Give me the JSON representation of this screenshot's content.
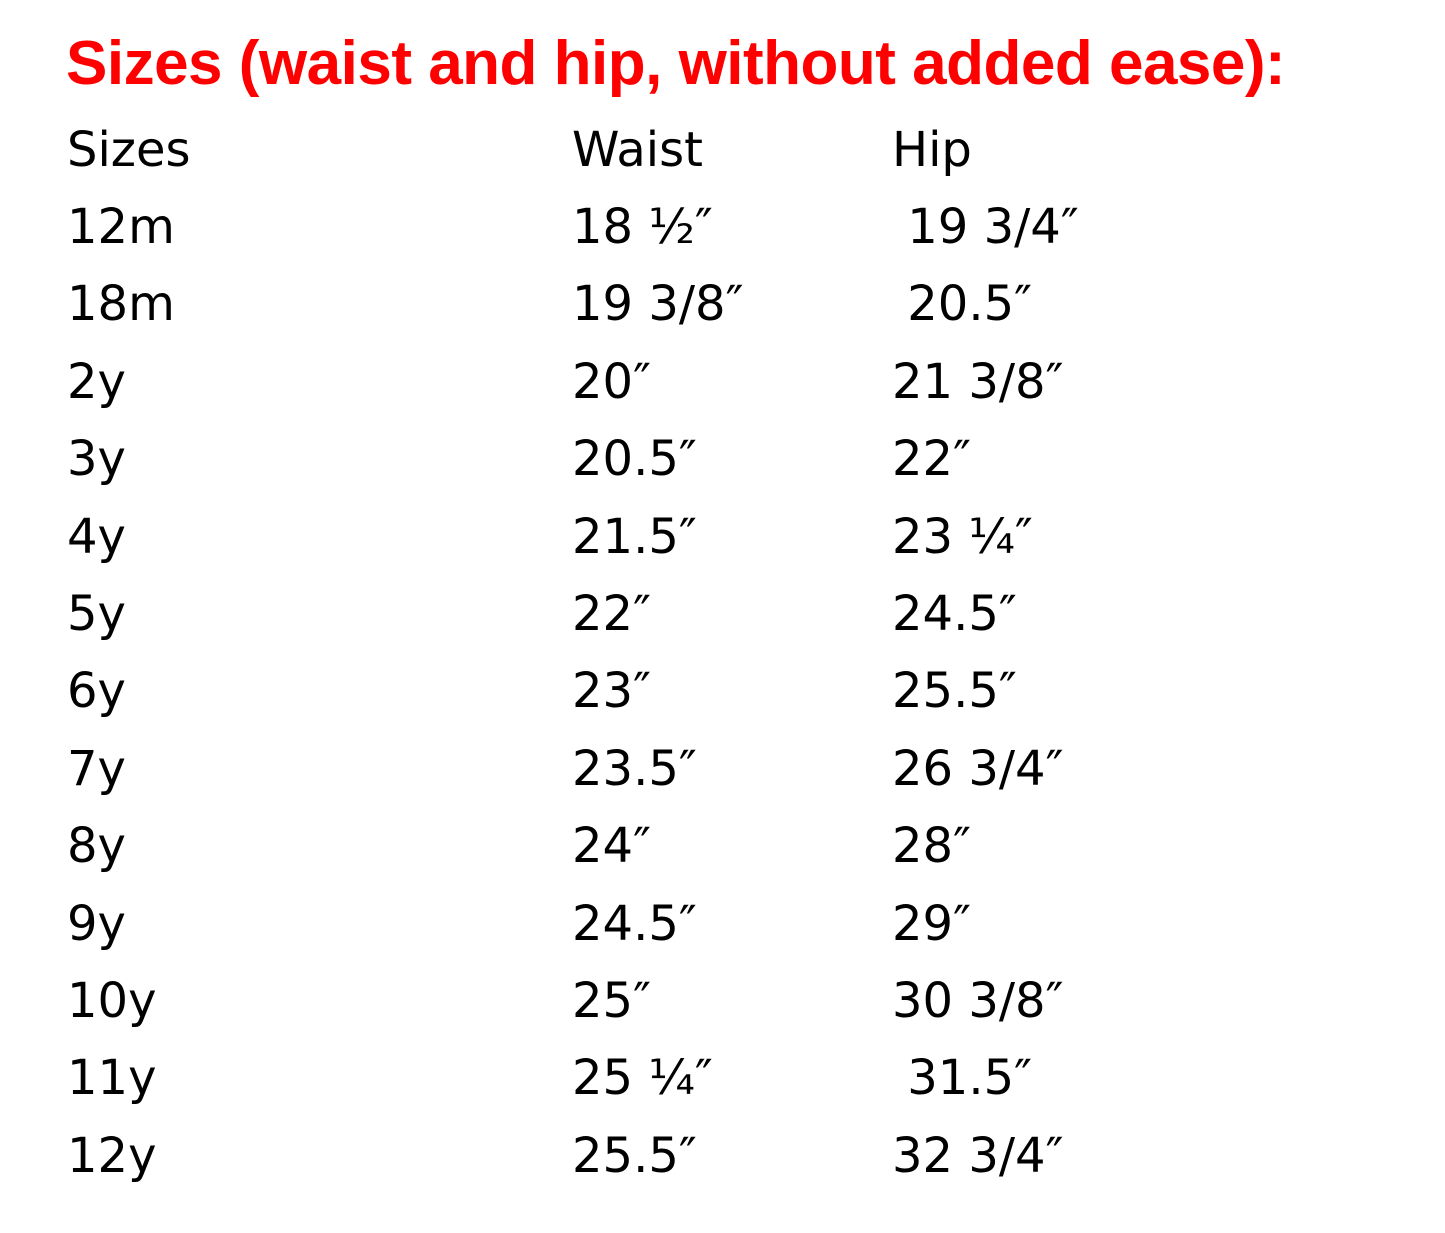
{
  "title": "Sizes (waist and hip, without added ease):",
  "title_color": "#ff0000",
  "table": {
    "headers": [
      "Sizes",
      "Waist",
      "Hip"
    ],
    "rows": [
      [
        "12m",
        "18 ½″",
        " 19 3/4″"
      ],
      [
        "18m",
        "19 3/8″",
        " 20.5″"
      ],
      [
        "2y",
        "20″",
        "21 3/8″"
      ],
      [
        "3y",
        "20.5″",
        "22″"
      ],
      [
        "4y",
        "21.5″",
        "23 ¼″"
      ],
      [
        "5y",
        "22″",
        "24.5″"
      ],
      [
        "6y",
        "23″",
        "25.5″"
      ],
      [
        "7y",
        "23.5″",
        "26 3/4″"
      ],
      [
        "8y",
        "24″",
        "28″"
      ],
      [
        "9y",
        "24.5″",
        "29″"
      ],
      [
        "10y",
        "25″",
        "30 3/8″"
      ],
      [
        "11y",
        "25 ¼″",
        " 31.5″"
      ],
      [
        "12y",
        "25.5″",
        "32 3/4″"
      ]
    ]
  }
}
